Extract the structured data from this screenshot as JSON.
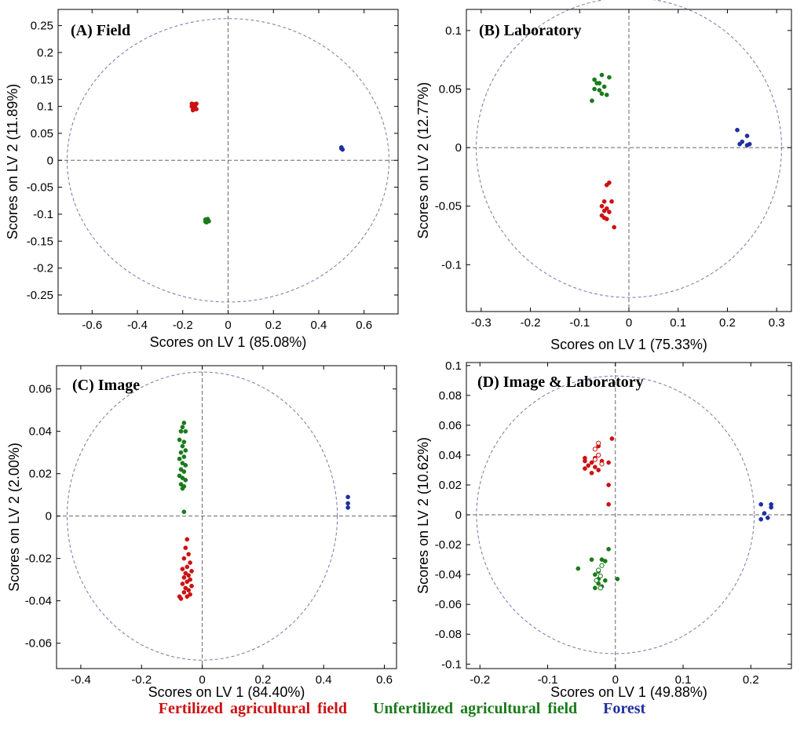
{
  "legend": {
    "fertilized": {
      "label": "Fertilized agricultural field",
      "color": "#cc1111"
    },
    "unfertilized": {
      "label": "Unfertilized agricultural field",
      "color": "#1a7a1a"
    },
    "forest": {
      "label": "Forest",
      "color": "#1f2fa0"
    }
  },
  "chart_data": [
    {
      "type": "scatter",
      "title": "(A) Field",
      "xlabel": "Scores on LV 1 (85.08%)",
      "ylabel": "Scores on LV 2 (11.89%)",
      "xlim": [
        -0.75,
        0.75
      ],
      "ylim": [
        -0.285,
        0.28
      ],
      "xticks": [
        -0.6,
        -0.4,
        -0.2,
        0,
        0.2,
        0.4,
        0.6
      ],
      "xtick_labels": [
        "-0.6",
        "-0.4",
        "-0.2",
        "0",
        "0.2",
        "0.4",
        "0.6"
      ],
      "yticks": [
        0.25,
        0.2,
        0.15,
        0.1,
        0.05,
        0,
        -0.05,
        -0.1,
        -0.15,
        -0.2,
        -0.25
      ],
      "ytick_labels": [
        "0.25",
        "0.2",
        "0.15",
        "0.1",
        "0.05",
        "0",
        "-0.05",
        "-0.1",
        "-0.15",
        "-0.2",
        "-0.25"
      ],
      "ellipse": {
        "cx": 0,
        "cy": 0,
        "rx": 0.71,
        "ry": 0.263
      },
      "series": [
        {
          "name": "Fertilized agricultural field",
          "color": "#cc1111",
          "points": [
            [
              -0.16,
              0.105
            ],
            [
              -0.15,
              0.1
            ],
            [
              -0.145,
              0.102
            ],
            [
              -0.155,
              0.097
            ],
            [
              -0.14,
              0.095
            ],
            [
              -0.16,
              0.1
            ],
            [
              -0.15,
              0.104
            ],
            [
              -0.14,
              0.105
            ],
            [
              -0.155,
              0.093
            ]
          ]
        },
        {
          "name": "Unfertilized agricultural field",
          "color": "#1a7a1a",
          "points": [
            [
              -0.1,
              -0.11
            ],
            [
              -0.09,
              -0.112
            ],
            [
              -0.095,
              -0.115
            ],
            [
              -0.085,
              -0.113
            ],
            [
              -0.1,
              -0.114
            ],
            [
              -0.09,
              -0.109
            ],
            [
              -0.095,
              -0.111
            ]
          ]
        },
        {
          "name": "Forest",
          "color": "#1f2fa0",
          "points": [
            [
              0.5,
              0.022
            ],
            [
              0.505,
              0.02
            ],
            [
              0.5,
              0.024
            ]
          ]
        }
      ]
    },
    {
      "type": "scatter",
      "title": "(B) Laboratory",
      "xlabel": "Scores on LV 1 (75.33%)",
      "ylabel": "Scores on LV 2 (12.77%)",
      "xlim": [
        -0.33,
        0.33
      ],
      "ylim": [
        -0.14,
        0.118
      ],
      "xticks": [
        -0.3,
        -0.2,
        -0.1,
        0,
        0.1,
        0.2,
        0.3
      ],
      "xtick_labels": [
        "-0.3",
        "-0.2",
        "-0.1",
        "0",
        "0.1",
        "0.2",
        "0.3"
      ],
      "yticks": [
        0.1,
        0.05,
        0,
        -0.05,
        -0.1
      ],
      "ytick_labels": [
        "0.1",
        "0.05",
        "0",
        "-0.05",
        "-0.1"
      ],
      "ellipse": {
        "cx": 0,
        "cy": 0,
        "rx": 0.31,
        "ry": 0.128
      },
      "series": [
        {
          "name": "Fertilized agricultural field",
          "color": "#cc1111",
          "points": [
            [
              -0.04,
              -0.03
            ],
            [
              -0.045,
              -0.032
            ],
            [
              -0.05,
              -0.046
            ],
            [
              -0.035,
              -0.046
            ],
            [
              -0.055,
              -0.05
            ],
            [
              -0.045,
              -0.052
            ],
            [
              -0.05,
              -0.054
            ],
            [
              -0.04,
              -0.055
            ],
            [
              -0.055,
              -0.058
            ],
            [
              -0.05,
              -0.06
            ],
            [
              -0.045,
              -0.061
            ],
            [
              -0.03,
              -0.068
            ]
          ]
        },
        {
          "name": "Unfertilized agricultural field",
          "color": "#1a7a1a",
          "points": [
            [
              -0.055,
              0.062
            ],
            [
              -0.04,
              0.06
            ],
            [
              -0.07,
              0.058
            ],
            [
              -0.065,
              0.055
            ],
            [
              -0.06,
              0.055
            ],
            [
              -0.05,
              0.052
            ],
            [
              -0.07,
              0.05
            ],
            [
              -0.06,
              0.049
            ],
            [
              -0.055,
              0.046
            ],
            [
              -0.045,
              0.045
            ],
            [
              -0.075,
              0.04
            ]
          ]
        },
        {
          "name": "Forest",
          "color": "#1f2fa0",
          "points": [
            [
              0.22,
              0.015
            ],
            [
              0.24,
              0.01
            ],
            [
              0.23,
              0.005
            ],
            [
              0.225,
              0.003
            ],
            [
              0.24,
              0.002
            ],
            [
              0.245,
              0.003
            ]
          ]
        }
      ]
    },
    {
      "type": "scatter",
      "title": "(C) Image",
      "xlabel": "Scores on LV 1 (84.40%)",
      "ylabel": "Scores on LV 2 (2.00%)",
      "xlim": [
        -0.48,
        0.64
      ],
      "ylim": [
        -0.072,
        0.071
      ],
      "xticks": [
        -0.4,
        -0.2,
        0,
        0.2,
        0.4,
        0.6
      ],
      "xtick_labels": [
        "-0.4",
        "-0.2",
        "0",
        "0.2",
        "0.4",
        "0.6"
      ],
      "yticks": [
        0.06,
        0.04,
        0.02,
        0,
        -0.02,
        -0.04,
        -0.06
      ],
      "ytick_labels": [
        "0.06",
        "0.04",
        "0.02",
        "0",
        "-0.02",
        "-0.04",
        "-0.06"
      ],
      "ellipse": {
        "cx": 0,
        "cy": 0,
        "rx": 0.445,
        "ry": 0.068
      },
      "series": [
        {
          "name": "Fertilized agricultural field",
          "color": "#cc1111",
          "points": [
            [
              -0.05,
              -0.011
            ],
            [
              -0.055,
              -0.015
            ],
            [
              -0.045,
              -0.018
            ],
            [
              -0.06,
              -0.02
            ],
            [
              -0.04,
              -0.022
            ],
            [
              -0.05,
              -0.024
            ],
            [
              -0.065,
              -0.025
            ],
            [
              -0.035,
              -0.026
            ],
            [
              -0.055,
              -0.027
            ],
            [
              -0.045,
              -0.028
            ],
            [
              -0.06,
              -0.029
            ],
            [
              -0.04,
              -0.03
            ],
            [
              -0.05,
              -0.031
            ],
            [
              -0.065,
              -0.032
            ],
            [
              -0.035,
              -0.033
            ],
            [
              -0.055,
              -0.034
            ],
            [
              -0.045,
              -0.035
            ],
            [
              -0.06,
              -0.036
            ],
            [
              -0.04,
              -0.037
            ],
            [
              -0.075,
              -0.038
            ],
            [
              -0.05,
              -0.038
            ],
            [
              -0.07,
              -0.039
            ]
          ]
        },
        {
          "name": "Unfertilized agricultural field",
          "color": "#1a7a1a",
          "points": [
            [
              -0.06,
              0.044
            ],
            [
              -0.065,
              0.042
            ],
            [
              -0.07,
              0.04
            ],
            [
              -0.055,
              0.04
            ],
            [
              -0.075,
              0.036
            ],
            [
              -0.06,
              0.035
            ],
            [
              -0.065,
              0.033
            ],
            [
              -0.055,
              0.031
            ],
            [
              -0.07,
              0.03
            ],
            [
              -0.06,
              0.028
            ],
            [
              -0.075,
              0.027
            ],
            [
              -0.065,
              0.025
            ],
            [
              -0.055,
              0.024
            ],
            [
              -0.07,
              0.022
            ],
            [
              -0.06,
              0.021
            ],
            [
              -0.075,
              0.019
            ],
            [
              -0.065,
              0.018
            ],
            [
              -0.055,
              0.017
            ],
            [
              -0.07,
              0.015
            ],
            [
              -0.06,
              0.014
            ],
            [
              -0.065,
              0.013
            ],
            [
              -0.06,
              0.002
            ]
          ]
        },
        {
          "name": "Forest",
          "color": "#1f2fa0",
          "points": [
            [
              0.48,
              0.009
            ],
            [
              0.48,
              0.006
            ],
            [
              0.48,
              0.004
            ]
          ]
        }
      ]
    },
    {
      "type": "scatter",
      "title": "(D) Image & Laboratory",
      "xlabel": "Scores on LV 1 (49.88%)",
      "ylabel": "Scores on LV 2 (10.62%)",
      "xlim": [
        -0.22,
        0.26
      ],
      "ylim": [
        -0.103,
        0.102
      ],
      "xticks": [
        -0.2,
        -0.1,
        0,
        0.1,
        0.2
      ],
      "xtick_labels": [
        "-0.2",
        "-0.1",
        "0",
        "0.1",
        "0.2"
      ],
      "yticks": [
        0.1,
        0.08,
        0.06,
        0.04,
        0.02,
        0,
        -0.02,
        -0.04,
        -0.06,
        -0.08,
        -0.1
      ],
      "ytick_labels": [
        "0.1",
        "0.08",
        "0.06",
        "0.04",
        "0.02",
        "0",
        "-0.02",
        "-0.04",
        "-0.06",
        "-0.08",
        "-0.1"
      ],
      "ellipse": {
        "cx": 0,
        "cy": 0,
        "rx": 0.205,
        "ry": 0.093
      },
      "series": [
        {
          "name": "Fertilized agricultural field",
          "color": "#cc1111",
          "points": [
            [
              -0.005,
              0.051
            ],
            [
              -0.025,
              0.046
            ],
            [
              -0.045,
              0.038
            ],
            [
              -0.045,
              0.036
            ],
            [
              -0.03,
              0.038
            ],
            [
              -0.035,
              0.035
            ],
            [
              -0.02,
              0.036
            ],
            [
              -0.01,
              0.035
            ],
            [
              -0.04,
              0.033
            ],
            [
              -0.045,
              0.031
            ],
            [
              -0.03,
              0.032
            ],
            [
              -0.025,
              0.03
            ],
            [
              -0.035,
              0.028
            ],
            [
              -0.01,
              0.02
            ],
            [
              -0.01,
              0.007
            ]
          ]
        },
        {
          "name": "Fertilized agricultural field (open)",
          "color": "#cc1111",
          "hollow": true,
          "points": [
            [
              -0.025,
              0.048
            ],
            [
              -0.03,
              0.044
            ],
            [
              -0.025,
              0.04
            ],
            [
              -0.03,
              0.037
            ],
            [
              -0.02,
              0.034
            ]
          ]
        },
        {
          "name": "Unfertilized agricultural field",
          "color": "#1a7a1a",
          "points": [
            [
              -0.01,
              -0.023
            ],
            [
              -0.02,
              -0.03
            ],
            [
              -0.035,
              -0.03
            ],
            [
              -0.015,
              -0.031
            ],
            [
              -0.055,
              -0.036
            ],
            [
              -0.025,
              -0.038
            ],
            [
              -0.03,
              -0.04
            ],
            [
              -0.025,
              -0.043
            ],
            [
              0.003,
              -0.043
            ],
            [
              -0.015,
              -0.044
            ],
            [
              -0.025,
              -0.046
            ],
            [
              -0.03,
              -0.049
            ],
            [
              -0.02,
              -0.048
            ]
          ]
        },
        {
          "name": "Unfertilized agricultural field (open)",
          "color": "#1a7a1a",
          "hollow": true,
          "points": [
            [
              -0.02,
              -0.034
            ],
            [
              -0.025,
              -0.037
            ],
            [
              -0.022,
              -0.041
            ],
            [
              -0.028,
              -0.044
            ],
            [
              -0.022,
              -0.049
            ]
          ]
        },
        {
          "name": "Forest",
          "color": "#1f2fa0",
          "points": [
            [
              0.215,
              0.007
            ],
            [
              0.23,
              0.007
            ],
            [
              0.23,
              0.005
            ],
            [
              0.22,
              0.001
            ],
            [
              0.225,
              -0.002
            ],
            [
              0.215,
              -0.003
            ]
          ]
        }
      ]
    }
  ]
}
